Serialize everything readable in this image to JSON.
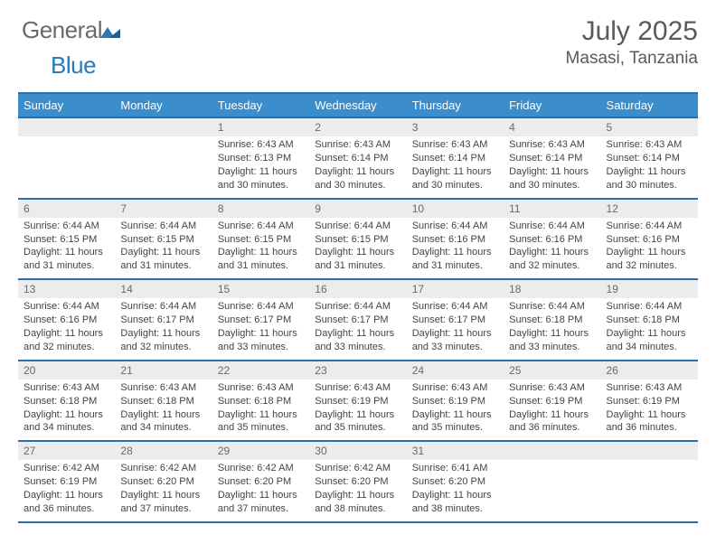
{
  "logo": {
    "word1": "General",
    "word2": "Blue"
  },
  "header": {
    "title": "July 2025",
    "location": "Masasi, Tanzania"
  },
  "colors": {
    "header_bg": "#3c8dcc",
    "border": "#2a6faa",
    "daynum_bg": "#ececec",
    "text": "#424242",
    "logo_gray": "#6a6a6a",
    "logo_blue": "#2a7ab8"
  },
  "weekdays": [
    "Sunday",
    "Monday",
    "Tuesday",
    "Wednesday",
    "Thursday",
    "Friday",
    "Saturday"
  ],
  "weeks": [
    [
      null,
      null,
      {
        "n": "1",
        "sr": "6:43 AM",
        "ss": "6:13 PM",
        "dl": "11 hours and 30 minutes."
      },
      {
        "n": "2",
        "sr": "6:43 AM",
        "ss": "6:14 PM",
        "dl": "11 hours and 30 minutes."
      },
      {
        "n": "3",
        "sr": "6:43 AM",
        "ss": "6:14 PM",
        "dl": "11 hours and 30 minutes."
      },
      {
        "n": "4",
        "sr": "6:43 AM",
        "ss": "6:14 PM",
        "dl": "11 hours and 30 minutes."
      },
      {
        "n": "5",
        "sr": "6:43 AM",
        "ss": "6:14 PM",
        "dl": "11 hours and 30 minutes."
      }
    ],
    [
      {
        "n": "6",
        "sr": "6:44 AM",
        "ss": "6:15 PM",
        "dl": "11 hours and 31 minutes."
      },
      {
        "n": "7",
        "sr": "6:44 AM",
        "ss": "6:15 PM",
        "dl": "11 hours and 31 minutes."
      },
      {
        "n": "8",
        "sr": "6:44 AM",
        "ss": "6:15 PM",
        "dl": "11 hours and 31 minutes."
      },
      {
        "n": "9",
        "sr": "6:44 AM",
        "ss": "6:15 PM",
        "dl": "11 hours and 31 minutes."
      },
      {
        "n": "10",
        "sr": "6:44 AM",
        "ss": "6:16 PM",
        "dl": "11 hours and 31 minutes."
      },
      {
        "n": "11",
        "sr": "6:44 AM",
        "ss": "6:16 PM",
        "dl": "11 hours and 32 minutes."
      },
      {
        "n": "12",
        "sr": "6:44 AM",
        "ss": "6:16 PM",
        "dl": "11 hours and 32 minutes."
      }
    ],
    [
      {
        "n": "13",
        "sr": "6:44 AM",
        "ss": "6:16 PM",
        "dl": "11 hours and 32 minutes."
      },
      {
        "n": "14",
        "sr": "6:44 AM",
        "ss": "6:17 PM",
        "dl": "11 hours and 32 minutes."
      },
      {
        "n": "15",
        "sr": "6:44 AM",
        "ss": "6:17 PM",
        "dl": "11 hours and 33 minutes."
      },
      {
        "n": "16",
        "sr": "6:44 AM",
        "ss": "6:17 PM",
        "dl": "11 hours and 33 minutes."
      },
      {
        "n": "17",
        "sr": "6:44 AM",
        "ss": "6:17 PM",
        "dl": "11 hours and 33 minutes."
      },
      {
        "n": "18",
        "sr": "6:44 AM",
        "ss": "6:18 PM",
        "dl": "11 hours and 33 minutes."
      },
      {
        "n": "19",
        "sr": "6:44 AM",
        "ss": "6:18 PM",
        "dl": "11 hours and 34 minutes."
      }
    ],
    [
      {
        "n": "20",
        "sr": "6:43 AM",
        "ss": "6:18 PM",
        "dl": "11 hours and 34 minutes."
      },
      {
        "n": "21",
        "sr": "6:43 AM",
        "ss": "6:18 PM",
        "dl": "11 hours and 34 minutes."
      },
      {
        "n": "22",
        "sr": "6:43 AM",
        "ss": "6:18 PM",
        "dl": "11 hours and 35 minutes."
      },
      {
        "n": "23",
        "sr": "6:43 AM",
        "ss": "6:19 PM",
        "dl": "11 hours and 35 minutes."
      },
      {
        "n": "24",
        "sr": "6:43 AM",
        "ss": "6:19 PM",
        "dl": "11 hours and 35 minutes."
      },
      {
        "n": "25",
        "sr": "6:43 AM",
        "ss": "6:19 PM",
        "dl": "11 hours and 36 minutes."
      },
      {
        "n": "26",
        "sr": "6:43 AM",
        "ss": "6:19 PM",
        "dl": "11 hours and 36 minutes."
      }
    ],
    [
      {
        "n": "27",
        "sr": "6:42 AM",
        "ss": "6:19 PM",
        "dl": "11 hours and 36 minutes."
      },
      {
        "n": "28",
        "sr": "6:42 AM",
        "ss": "6:20 PM",
        "dl": "11 hours and 37 minutes."
      },
      {
        "n": "29",
        "sr": "6:42 AM",
        "ss": "6:20 PM",
        "dl": "11 hours and 37 minutes."
      },
      {
        "n": "30",
        "sr": "6:42 AM",
        "ss": "6:20 PM",
        "dl": "11 hours and 38 minutes."
      },
      {
        "n": "31",
        "sr": "6:41 AM",
        "ss": "6:20 PM",
        "dl": "11 hours and 38 minutes."
      },
      null,
      null
    ]
  ],
  "labels": {
    "sunrise": "Sunrise: ",
    "sunset": "Sunset: ",
    "daylight": "Daylight: "
  }
}
